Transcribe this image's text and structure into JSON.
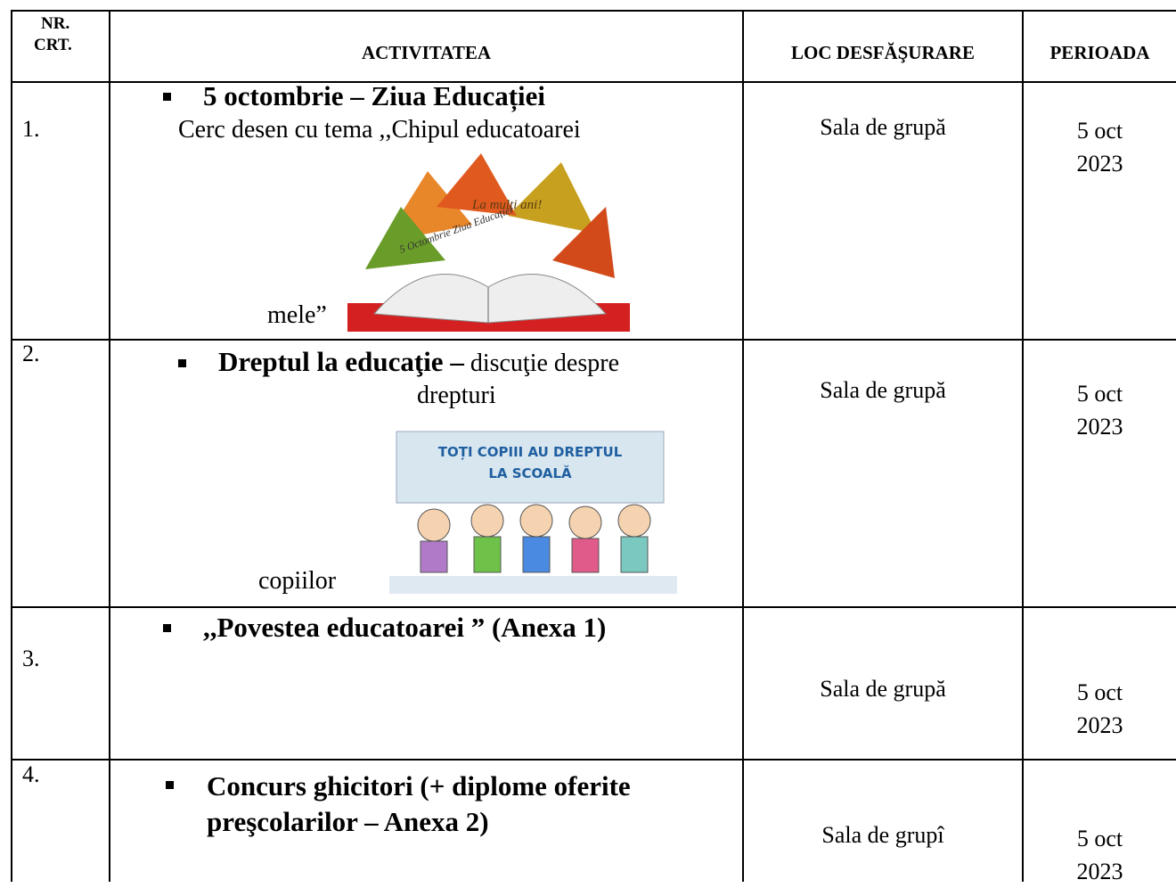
{
  "header": [
    [
      "NR.",
      "CRT."
    ],
    "ACTIVITATEA",
    "LOC DESFĂŞURARE",
    "PERIOADA"
  ],
  "rows": [
    {
      "number": "1.",
      "title": "5 octombrie – Ziua Educației",
      "text": [
        "Cerc desen cu tema ,,Chipul educatoarei",
        "mele”"
      ],
      "image_text": [
        "La mulți ani!",
        "5 Octombrie Ziua Educației"
      ],
      "location": "Sala de grupă",
      "period": "5 oct 2023"
    },
    {
      "number": "2.",
      "title": "Dreptul la educaţie –",
      "text": [
        "discuţie despre",
        "drepturi",
        "copiilor"
      ],
      "image_text": [
        "TOȚI COPIII AU DREPTUL",
        "LA SCOALĂ"
      ],
      "location": "Sala de grupă",
      "period": "5 oct 2023"
    },
    {
      "number": "3.",
      "title": ",,Povestea educatoarei ” (Anexa 1)",
      "location": "Sala de grupă",
      "period": "5 oct 2023"
    },
    {
      "number": "4.",
      "title": "Concurs ghicitori (+ diplome oferite preşcolarilor – Anexa 2)",
      "location": "Sala de grupî",
      "period": "5 oct 2023"
    }
  ]
}
